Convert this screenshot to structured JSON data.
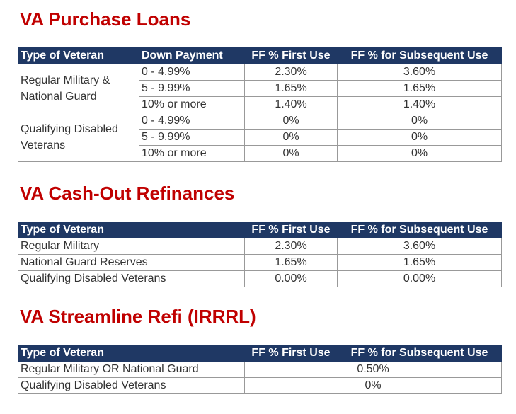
{
  "sections": [
    {
      "title": "VA Purchase Loans",
      "table": {
        "header": [
          "Type of Veteran",
          "Down Payment",
          "FF % First Use",
          "FF % for Subsequent Use"
        ],
        "groups": [
          {
            "type": "Regular Military & National Guard",
            "rows": [
              [
                "0 - 4.99%",
                "2.30%",
                "3.60%"
              ],
              [
                "5 - 9.99%",
                "1.65%",
                "1.65%"
              ],
              [
                "10% or more",
                "1.40%",
                "1.40%"
              ]
            ]
          },
          {
            "type": "Qualifying Disabled Veterans",
            "rows": [
              [
                "0 - 4.99%",
                "0%",
                "0%"
              ],
              [
                "5 - 9.99%",
                "0%",
                "0%"
              ],
              [
                "10% or more",
                "0%",
                "0%"
              ]
            ]
          }
        ]
      }
    },
    {
      "title": "VA Cash-Out Refinances",
      "table": {
        "header": [
          "Type of Veteran",
          "FF % First Use",
          "FF % for Subsequent Use"
        ],
        "rows": [
          [
            "Regular Military",
            "2.30%",
            "3.60%"
          ],
          [
            "National Guard Reserves",
            "1.65%",
            "1.65%"
          ],
          [
            "Qualifying Disabled Veterans",
            "0.00%",
            "0.00%"
          ]
        ]
      }
    },
    {
      "title": "VA Streamline Refi (IRRRL)",
      "table": {
        "header": [
          "Type of Veteran",
          "FF % First Use",
          "FF % for Subsequent Use"
        ],
        "rows": [
          [
            "Regular Military OR National Guard",
            "0.50%"
          ],
          [
            "Qualifying Disabled Veterans",
            "0%"
          ]
        ]
      }
    }
  ]
}
